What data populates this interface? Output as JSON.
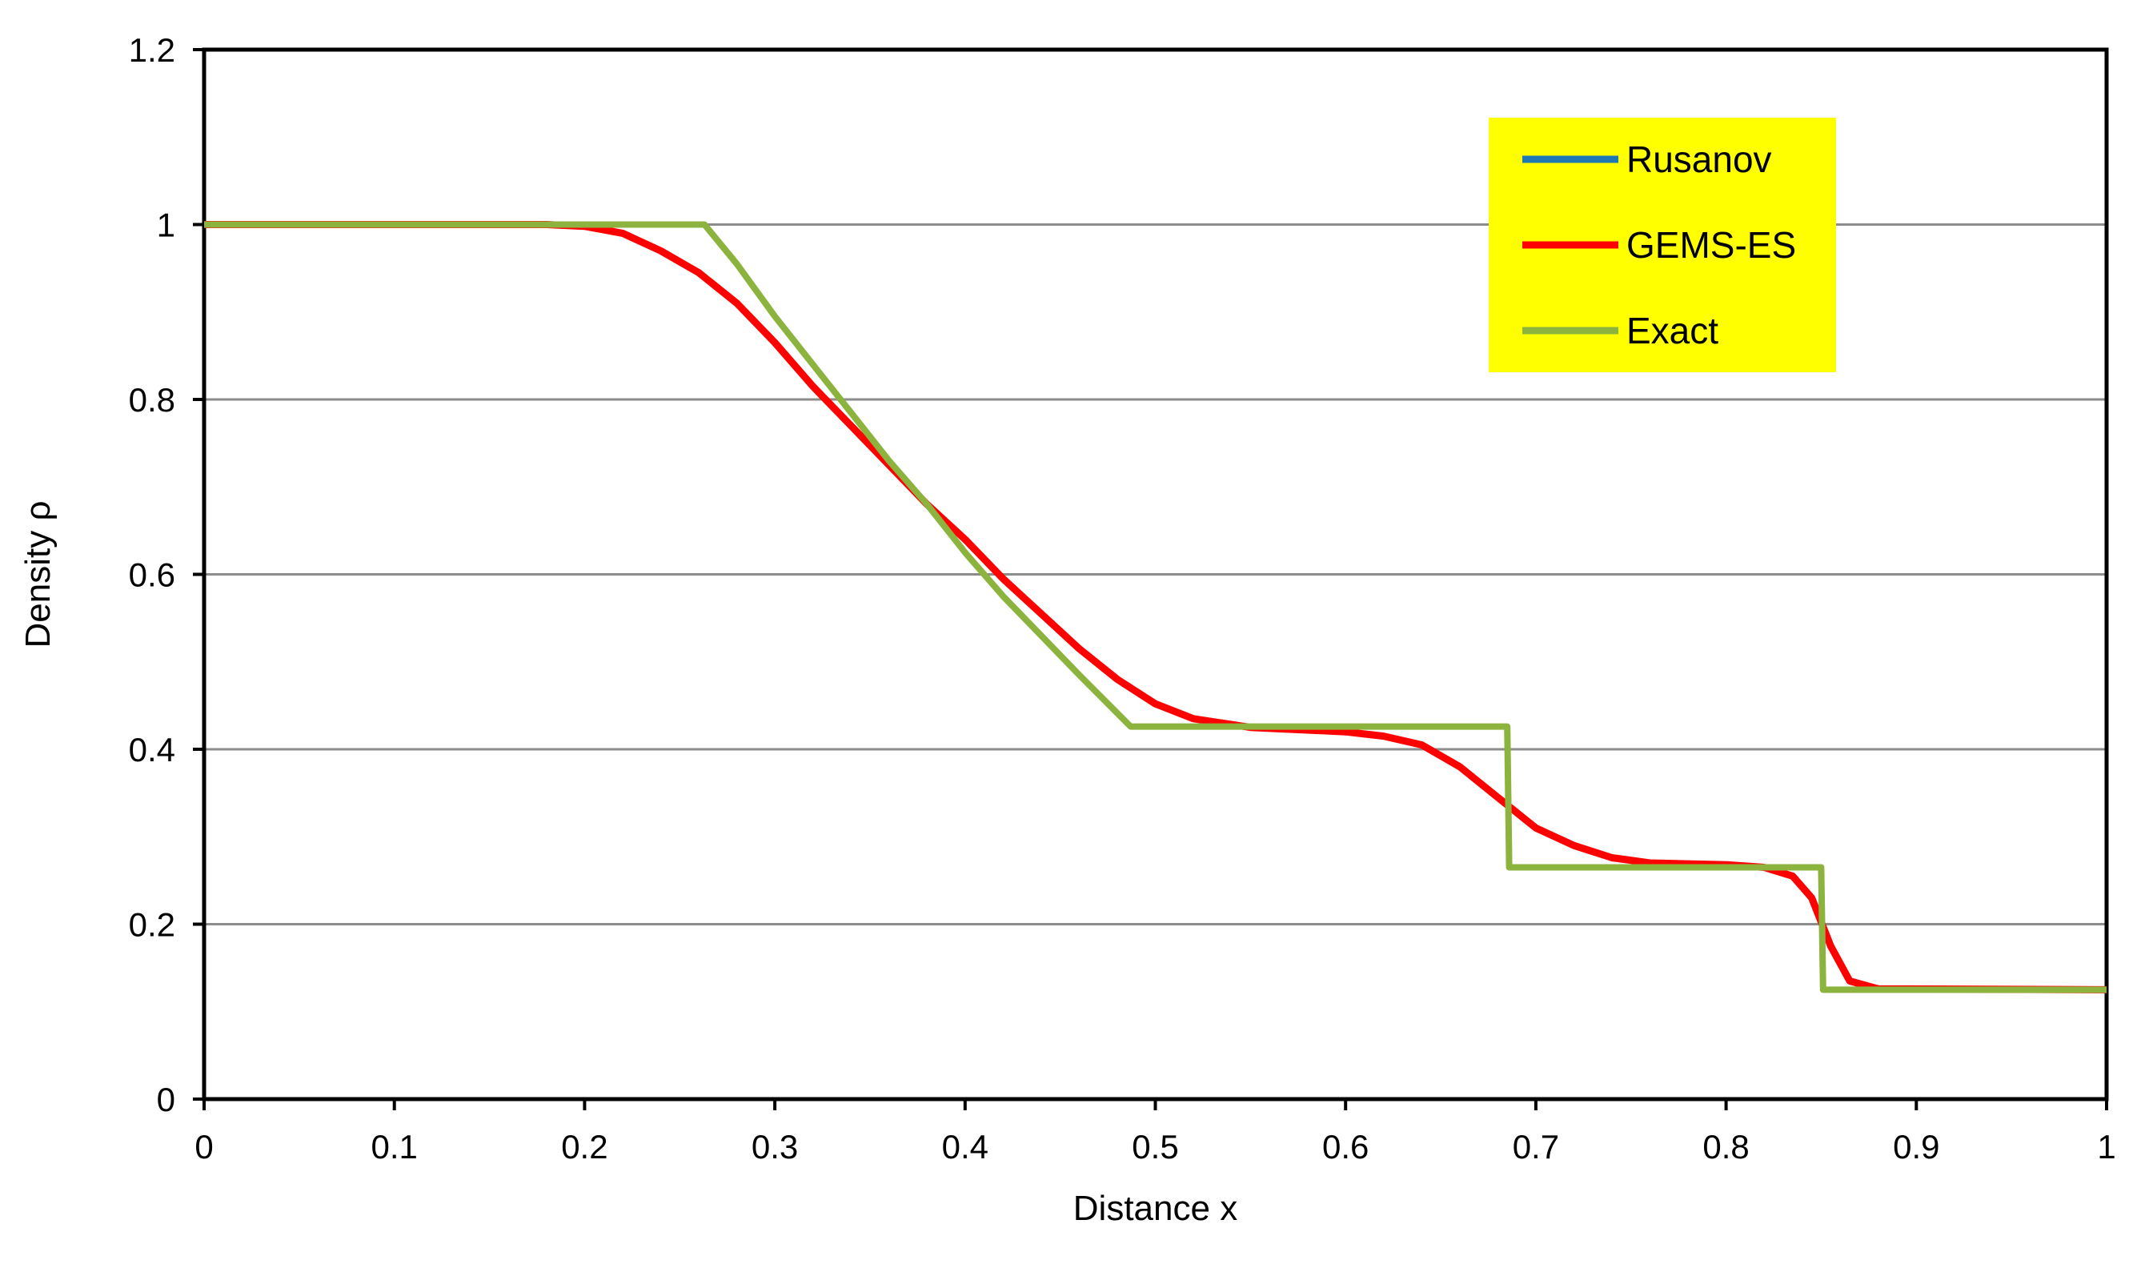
{
  "chart_data": {
    "type": "line",
    "title": "",
    "xlabel": "Distance x",
    "ylabel": "Density ρ",
    "xlim": [
      0,
      1
    ],
    "ylim": [
      0,
      1.2
    ],
    "x_ticks": [
      0,
      0.1,
      0.2,
      0.3,
      0.4,
      0.5,
      0.6,
      0.7,
      0.8,
      0.9,
      1
    ],
    "x_tick_labels": [
      "0",
      "0.1",
      "0.2",
      "0.3",
      "0.4",
      "0.5",
      "0.6",
      "0.7",
      "0.8",
      "0.9",
      "1"
    ],
    "y_ticks": [
      0,
      0.2,
      0.4,
      0.6,
      0.8,
      1,
      1.2
    ],
    "y_tick_labels": [
      "0",
      "0.2",
      "0.4",
      "0.6",
      "0.8",
      "1",
      "1.2"
    ],
    "grid": "horizontal",
    "legend_position": "top-right",
    "legend_background": "#ffff00",
    "series": [
      {
        "name": "Rusanov",
        "color": "#1f77b4",
        "points": [
          [
            0,
            1.0
          ],
          [
            0.18,
            1.0
          ],
          [
            0.2,
            0.998
          ],
          [
            0.22,
            0.99
          ],
          [
            0.24,
            0.97
          ],
          [
            0.26,
            0.945
          ],
          [
            0.28,
            0.91
          ],
          [
            0.3,
            0.865
          ],
          [
            0.32,
            0.815
          ],
          [
            0.34,
            0.77
          ],
          [
            0.36,
            0.725
          ],
          [
            0.38,
            0.68
          ],
          [
            0.4,
            0.64
          ],
          [
            0.42,
            0.595
          ],
          [
            0.44,
            0.555
          ],
          [
            0.46,
            0.515
          ],
          [
            0.48,
            0.48
          ],
          [
            0.5,
            0.452
          ],
          [
            0.52,
            0.435
          ],
          [
            0.55,
            0.425
          ],
          [
            0.6,
            0.42
          ],
          [
            0.62,
            0.415
          ],
          [
            0.64,
            0.405
          ],
          [
            0.66,
            0.38
          ],
          [
            0.68,
            0.345
          ],
          [
            0.7,
            0.31
          ],
          [
            0.72,
            0.29
          ],
          [
            0.74,
            0.276
          ],
          [
            0.76,
            0.27
          ],
          [
            0.8,
            0.268
          ],
          [
            0.82,
            0.265
          ],
          [
            0.835,
            0.255
          ],
          [
            0.845,
            0.23
          ],
          [
            0.855,
            0.175
          ],
          [
            0.865,
            0.135
          ],
          [
            0.88,
            0.126
          ],
          [
            1,
            0.125
          ]
        ]
      },
      {
        "name": "GEMS-ES",
        "color": "#ff0000",
        "points": [
          [
            0,
            1.0
          ],
          [
            0.18,
            1.0
          ],
          [
            0.2,
            0.998
          ],
          [
            0.22,
            0.99
          ],
          [
            0.24,
            0.97
          ],
          [
            0.26,
            0.945
          ],
          [
            0.28,
            0.91
          ],
          [
            0.3,
            0.865
          ],
          [
            0.32,
            0.815
          ],
          [
            0.34,
            0.77
          ],
          [
            0.36,
            0.725
          ],
          [
            0.38,
            0.68
          ],
          [
            0.4,
            0.64
          ],
          [
            0.42,
            0.595
          ],
          [
            0.44,
            0.555
          ],
          [
            0.46,
            0.515
          ],
          [
            0.48,
            0.48
          ],
          [
            0.5,
            0.452
          ],
          [
            0.52,
            0.435
          ],
          [
            0.55,
            0.425
          ],
          [
            0.6,
            0.42
          ],
          [
            0.62,
            0.415
          ],
          [
            0.64,
            0.405
          ],
          [
            0.66,
            0.38
          ],
          [
            0.68,
            0.345
          ],
          [
            0.7,
            0.31
          ],
          [
            0.72,
            0.29
          ],
          [
            0.74,
            0.276
          ],
          [
            0.76,
            0.27
          ],
          [
            0.8,
            0.268
          ],
          [
            0.82,
            0.265
          ],
          [
            0.835,
            0.255
          ],
          [
            0.845,
            0.23
          ],
          [
            0.855,
            0.175
          ],
          [
            0.865,
            0.135
          ],
          [
            0.88,
            0.126
          ],
          [
            1,
            0.125
          ]
        ]
      },
      {
        "name": "Exact",
        "color": "#8db33f",
        "points": [
          [
            0,
            1.0
          ],
          [
            0.263,
            1.0
          ],
          [
            0.28,
            0.955
          ],
          [
            0.3,
            0.895
          ],
          [
            0.32,
            0.84
          ],
          [
            0.34,
            0.785
          ],
          [
            0.36,
            0.73
          ],
          [
            0.38,
            0.68
          ],
          [
            0.4,
            0.625
          ],
          [
            0.42,
            0.575
          ],
          [
            0.44,
            0.53
          ],
          [
            0.46,
            0.485
          ],
          [
            0.487,
            0.426
          ],
          [
            0.685,
            0.426
          ],
          [
            0.686,
            0.265
          ],
          [
            0.85,
            0.265
          ],
          [
            0.851,
            0.125
          ],
          [
            1,
            0.125
          ]
        ]
      }
    ]
  }
}
